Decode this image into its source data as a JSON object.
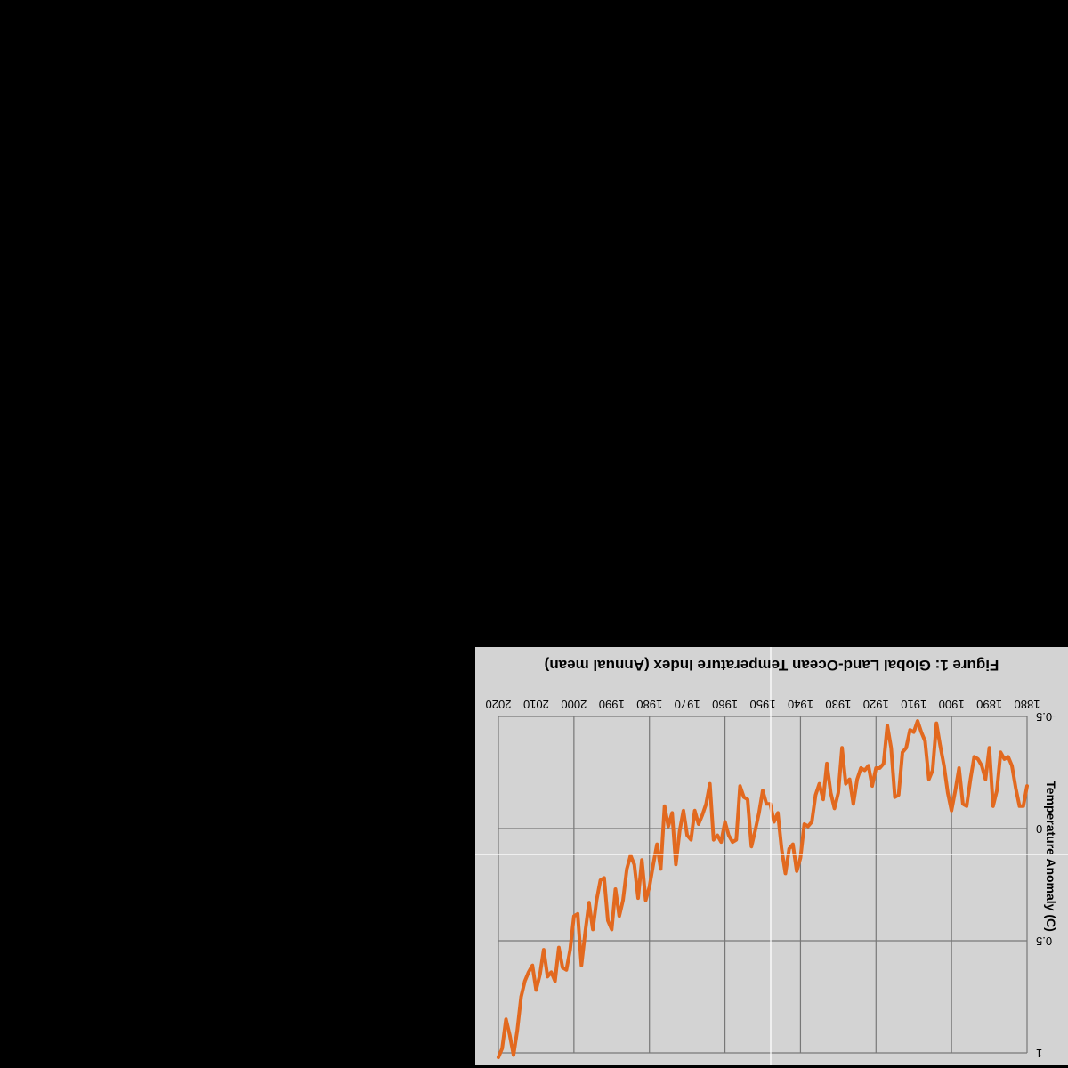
{
  "colors": {
    "line": "#e2691f",
    "background": "#d3d3d3",
    "page": "#000000",
    "grid": "#777777"
  },
  "orientation": "rotated-180",
  "chart_data": {
    "type": "line",
    "title": "Figure 1: Global Land-Ocean Temperature Index (Annual mean)",
    "xlabel": "",
    "ylabel": "Temperature Anomaly (C)",
    "xlim": [
      1880,
      2020
    ],
    "ylim": [
      -0.5,
      1
    ],
    "x_ticks": [
      "1880",
      "1890",
      "1900",
      "1910",
      "1920",
      "1930",
      "1940",
      "1950",
      "1960",
      "1970",
      "1980",
      "1990",
      "2000",
      "2010",
      "2020"
    ],
    "y_ticks": [
      "-0.5",
      "0",
      "0.5",
      "1"
    ],
    "grid": true,
    "legend": "none",
    "series": [
      {
        "x": [
          1880,
          1881,
          1882,
          1883,
          1884,
          1885,
          1886,
          1887,
          1888,
          1889,
          1890,
          1891,
          1892,
          1893,
          1894,
          1895,
          1896,
          1897,
          1898,
          1899,
          1900,
          1901,
          1902,
          1903,
          1904,
          1905,
          1906,
          1907,
          1908,
          1909,
          1910,
          1911,
          1912,
          1913,
          1914,
          1915,
          1916,
          1917,
          1918,
          1919,
          1920,
          1921,
          1922,
          1923,
          1924,
          1925,
          1926,
          1927,
          1928,
          1929,
          1930,
          1931,
          1932,
          1933,
          1934,
          1935,
          1936,
          1937,
          1938,
          1939,
          1940,
          1941,
          1942,
          1943,
          1944,
          1945,
          1946,
          1947,
          1948,
          1949,
          1950,
          1951,
          1952,
          1953,
          1954,
          1955,
          1956,
          1957,
          1958,
          1959,
          1960,
          1961,
          1962,
          1963,
          1964,
          1965,
          1966,
          1967,
          1968,
          1969,
          1970,
          1971,
          1972,
          1973,
          1974,
          1975,
          1976,
          1977,
          1978,
          1979,
          1980,
          1981,
          1982,
          1983,
          1984,
          1985,
          1986,
          1987,
          1988,
          1989,
          1990,
          1991,
          1992,
          1993,
          1994,
          1995,
          1996,
          1997,
          1998,
          1999,
          2000,
          2001,
          2002,
          2003,
          2004,
          2005,
          2006,
          2007,
          2008,
          2009,
          2010,
          2011,
          2012,
          2013,
          2014,
          2015,
          2016,
          2017,
          2018,
          2019,
          2020
        ],
        "values": [
          -0.19,
          -0.1,
          -0.1,
          -0.18,
          -0.28,
          -0.32,
          -0.31,
          -0.34,
          -0.17,
          -0.1,
          -0.36,
          -0.22,
          -0.28,
          -0.31,
          -0.32,
          -0.22,
          -0.1,
          -0.11,
          -0.27,
          -0.17,
          -0.08,
          -0.16,
          -0.28,
          -0.37,
          -0.47,
          -0.26,
          -0.22,
          -0.39,
          -0.43,
          -0.48,
          -0.43,
          -0.44,
          -0.36,
          -0.34,
          -0.15,
          -0.14,
          -0.36,
          -0.46,
          -0.29,
          -0.27,
          -0.27,
          -0.19,
          -0.28,
          -0.26,
          -0.27,
          -0.22,
          -0.11,
          -0.22,
          -0.2,
          -0.36,
          -0.16,
          -0.09,
          -0.16,
          -0.29,
          -0.13,
          -0.2,
          -0.15,
          -0.03,
          -0.01,
          -0.02,
          0.13,
          0.19,
          0.07,
          0.09,
          0.2,
          0.09,
          -0.07,
          -0.03,
          -0.11,
          -0.11,
          -0.17,
          -0.07,
          0.01,
          0.08,
          -0.13,
          -0.14,
          -0.19,
          0.05,
          0.06,
          0.03,
          -0.03,
          0.06,
          0.03,
          0.05,
          -0.2,
          -0.11,
          -0.06,
          -0.02,
          -0.08,
          0.05,
          0.03,
          -0.08,
          0.01,
          0.16,
          -0.07,
          -0.01,
          -0.1,
          0.18,
          0.07,
          0.16,
          0.26,
          0.32,
          0.14,
          0.31,
          0.16,
          0.12,
          0.18,
          0.32,
          0.39,
          0.27,
          0.45,
          0.41,
          0.22,
          0.23,
          0.32,
          0.45,
          0.33,
          0.46,
          0.61,
          0.38,
          0.39,
          0.54,
          0.63,
          0.62,
          0.53,
          0.68,
          0.64,
          0.66,
          0.54,
          0.65,
          0.72,
          0.61,
          0.64,
          0.68,
          0.75,
          0.9,
          1.01,
          0.92,
          0.85,
          0.98,
          1.02
        ]
      }
    ]
  }
}
